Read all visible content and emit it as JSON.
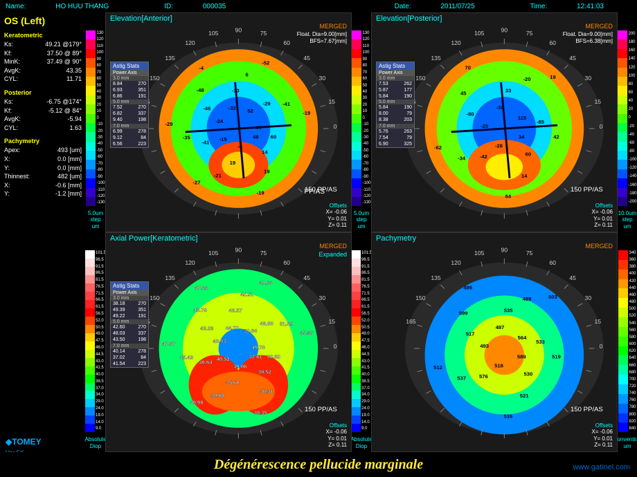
{
  "header": {
    "name_label": "Name:",
    "name": "HO HUU THANG",
    "id_label": "ID:",
    "id": "000035",
    "date_label": "Date:",
    "date": "2011/07/25",
    "time_label": "Time:",
    "time": "12:41:03"
  },
  "sidebar": {
    "eye": "OS (Left)",
    "sections": {
      "keratometric": {
        "title": "Keratometric",
        "rows": [
          {
            "label": "Ks:",
            "value": "49.21 @179°"
          },
          {
            "label": "Kf:",
            "value": "37.50 @ 89°"
          },
          {
            "label": "MinK:",
            "value": "37.49 @ 90°"
          },
          {
            "label": "AvgK:",
            "value": "43.35"
          },
          {
            "label": "CYL:",
            "value": "11.71"
          }
        ]
      },
      "posterior": {
        "title": "Posterior",
        "rows": [
          {
            "label": "Ks:",
            "value": "-6.75 @174°"
          },
          {
            "label": "Kf:",
            "value": "-5.12 @ 84°"
          },
          {
            "label": "AvgK:",
            "value": "-5.94"
          },
          {
            "label": "CYL:",
            "value": "1.63"
          }
        ]
      },
      "pachymetry": {
        "title": "Pachymetry",
        "rows": [
          {
            "label": "Apex:",
            "value": "493 [um]"
          },
          {
            "label": "X:",
            "value": "0.0 [mm]"
          },
          {
            "label": "Y:",
            "value": "0.0 [mm]"
          },
          {
            "label": "Thinnest:",
            "value": "482 [um]"
          },
          {
            "label": "X:",
            "value": "-0.6 [mm]"
          },
          {
            "label": "Y:",
            "value": "-1.2 [mm]"
          }
        ]
      }
    },
    "logo": "◆TOMEY",
    "version": "Ver.5X"
  },
  "scales": {
    "elevation": {
      "colors": [
        "#ff00ff",
        "#ff0055",
        "#ff0000",
        "#ff5500",
        "#ff8800",
        "#ffbb00",
        "#ffee00",
        "#ccff00",
        "#88ff00",
        "#44ff00",
        "#00ff44",
        "#00ff99",
        "#00ffdd",
        "#00ddff",
        "#0099ff",
        "#0055ff",
        "#0000ff",
        "#3300cc",
        "#220088"
      ],
      "labels_anterior": [
        "130",
        "120",
        "110",
        "100",
        "90",
        "80",
        "70",
        "60",
        "50",
        "40",
        "30",
        "20",
        "10",
        "0",
        "-10",
        "-20",
        "-30",
        "-40",
        "-50",
        "-60",
        "-70",
        "-80",
        "-90",
        "-100",
        "-110",
        "-120",
        "-130"
      ],
      "labels_posterior": [
        "200",
        "180",
        "160",
        "140",
        "120",
        "100",
        "80",
        "60",
        "40",
        "20",
        "0",
        "-20",
        "-40",
        "-60",
        "-80",
        "-100",
        "-120",
        "-140",
        "-160",
        "-180",
        "-200"
      ],
      "step_anterior": "5.0um step",
      "step_posterior": "10.0um step",
      "unit": "um"
    },
    "axial": {
      "colors": [
        "#ffffff",
        "#ffe0e0",
        "#ffc0c0",
        "#ff9090",
        "#ff6060",
        "#ff4040",
        "#ff2020",
        "#ff0000",
        "#ff4400",
        "#ff8800",
        "#ffcc00",
        "#ffff00",
        "#ccff00",
        "#88ff00",
        "#44ff00",
        "#00ff00",
        "#00ff66",
        "#00ffcc",
        "#00ccff",
        "#0088ff",
        "#0044ff",
        "#0000ff"
      ],
      "labels": [
        "101.5",
        "96.5",
        "91.5",
        "86.5",
        "81.5",
        "76.5",
        "71.5",
        "66.5",
        "61.5",
        "56.5",
        "52.0",
        "50.5",
        "49.0",
        "47.5",
        "46.0",
        "44.5",
        "43.0",
        "41.5",
        "40.0",
        "38.5",
        "37.0",
        "34.0",
        "29.0",
        "24.0",
        "19.0",
        "14.0",
        "9.0"
      ],
      "step": "Absolute",
      "unit": "Diop"
    },
    "pachy": {
      "colors": [
        "#ff0000",
        "#ff3300",
        "#ff6600",
        "#ff9900",
        "#ffcc00",
        "#ffff00",
        "#ccff00",
        "#99ff00",
        "#66ff00",
        "#33ff00",
        "#00ff00",
        "#00ff55",
        "#00ffaa",
        "#00ffff",
        "#00ccff",
        "#0099ff",
        "#0066ff",
        "#0033ff",
        "#0000ff"
      ],
      "labels": [
        "340",
        "360",
        "380",
        "400",
        "420",
        "440",
        "460",
        "480",
        "500",
        "520",
        "540",
        "560",
        "580",
        "600",
        "620",
        "640",
        "660",
        "680",
        "700",
        "720",
        "740",
        "760",
        "780",
        "800",
        "820",
        "840"
      ],
      "step": "Convention",
      "unit": "um"
    }
  },
  "panels": {
    "anterior": {
      "title": "Elevation[Anterior]",
      "merged": "MERGED",
      "info": "Float. Dia=9.00[mm]\nBFS=7.67[mm]",
      "offsets": {
        "title": "Offsets",
        "x": "X= -0.06",
        "y": "Y=  0.01",
        "z": "Z=  0.11"
      },
      "ppas": "PP/AS",
      "degree_ticks": [
        "90",
        "75",
        "60",
        "45",
        "30",
        "15",
        "0",
        "165",
        "150",
        "135",
        "120",
        "105"
      ],
      "radius_ticks": [
        "150",
        "120",
        "90",
        "60",
        "30"
      ],
      "value_labels": [
        "48",
        "14",
        "19",
        "-19",
        "-4",
        "19",
        "-21",
        "-27",
        "-15",
        "-41",
        "-35",
        "-29",
        "-24",
        "-46",
        "-48",
        "-4",
        "-32",
        "-13",
        "6",
        "-52",
        "52",
        "-29",
        "-41",
        "-19",
        "44",
        "60"
      ],
      "stats": {
        "title": "Astig Stats",
        "sub": "Power Axis",
        "zones": [
          {
            "hdr": "3.0 mm",
            "rows": [
              [
                "8.84",
                "270"
              ],
              [
                "6.93",
                "351"
              ],
              [
                "6.86",
                "191"
              ]
            ]
          },
          {
            "hdr": "5.0 mm",
            "rows": [
              [
                "7.52",
                "270"
              ],
              [
                "6.82",
                "337"
              ],
              [
                "9.40",
                "198"
              ]
            ]
          },
          {
            "hdr": "7.0 mm",
            "rows": [
              [
                "6.99",
                "278"
              ],
              [
                "9.12",
                "84"
              ],
              [
                "6.56",
                "223"
              ]
            ]
          }
        ]
      }
    },
    "posterior": {
      "title": "Elevation[Posterior]",
      "merged": "MERGED",
      "info": "Float. Dia=9.00[mm]\nBFS=6.38[mm]",
      "offsets": {
        "title": "Offsets",
        "x": "X= -0.06",
        "y": "Y=  0.01",
        "z": "Z=  0.11"
      },
      "ppas": "PP/AS",
      "value_labels": [
        "34",
        "60",
        "14",
        "64",
        "-28",
        "-42",
        "-34",
        "-62",
        "-20",
        "-80",
        "45",
        "70",
        "-30",
        "33",
        "-20",
        "19",
        "115",
        "-85",
        "42"
      ],
      "stats": {
        "title": "Astig Stats",
        "sub": "Power Axis",
        "zones": [
          {
            "hdr": "3.0 mm",
            "rows": [
              [
                "7.53",
                "262"
              ],
              [
                "5.87",
                "177"
              ],
              [
                "5.84",
                "190"
              ]
            ]
          },
          {
            "hdr": "5.0 mm",
            "rows": [
              [
                "5.84",
                "190"
              ],
              [
                "8.00",
                "79"
              ],
              [
                "8.38",
                "203"
              ]
            ]
          },
          {
            "hdr": "7.0 mm",
            "rows": [
              [
                "5.76",
                "263"
              ],
              [
                "7.54",
                "79"
              ],
              [
                "6.90",
                "325"
              ]
            ]
          }
        ]
      }
    },
    "axial": {
      "title": "Axial Power[Keratometric]",
      "merged": "MERGED",
      "expanded": "Expanded",
      "offsets": {
        "title": "Offsets",
        "x": "X= -0.06",
        "y": "Y=  0.01",
        "z": "Z=  0.11"
      },
      "ppas": "PP/AS",
      "value_labels": [
        "37.61",
        "39.52",
        "36.31",
        "39.35",
        "39.06",
        "35.60",
        "39.68",
        "40.98",
        "40.51",
        "40.64",
        "45.43",
        "47.87",
        "48.93",
        "43.03",
        "48.79",
        "47.24",
        "44.77",
        "46.27",
        "45.91",
        "49.64",
        "39.84",
        "48.68",
        "51.89",
        "45.36",
        "49.78",
        "50.69"
      ],
      "stats": {
        "title": "Astig Stats",
        "sub": "Power Axis",
        "zones": [
          {
            "hdr": "3.0 mm",
            "rows": [
              [
                "38.18",
                "270"
              ],
              [
                "49.39",
                "351"
              ],
              [
                "49.22",
                "191"
              ]
            ]
          },
          {
            "hdr": "5.0 mm",
            "rows": [
              [
                "42.60",
                "270"
              ],
              [
                "48.03",
                "337"
              ],
              [
                "43.50",
                "198"
              ]
            ]
          },
          {
            "hdr": "7.0 mm",
            "rows": [
              [
                "40.14",
                "278"
              ],
              [
                "37.02",
                "84"
              ],
              [
                "41.54",
                "223"
              ]
            ]
          }
        ]
      }
    },
    "pachy": {
      "title": "Pachymetry",
      "merged": "MERGED",
      "offsets": {
        "title": "Offsets",
        "x": "X= -0.06",
        "y": "Y=  0.01",
        "z": "Z=  0.11"
      },
      "ppas": "PP/AS",
      "value_labels": [
        "589",
        "530",
        "521",
        "516",
        "518",
        "576",
        "537",
        "512",
        "493",
        "517",
        "599",
        "486",
        "487",
        "535",
        "489",
        "503",
        "564",
        "533",
        "519"
      ]
    }
  },
  "footer": {
    "title": "Dégénérescence pellucide marginale",
    "url": "www.gatinel.com"
  }
}
